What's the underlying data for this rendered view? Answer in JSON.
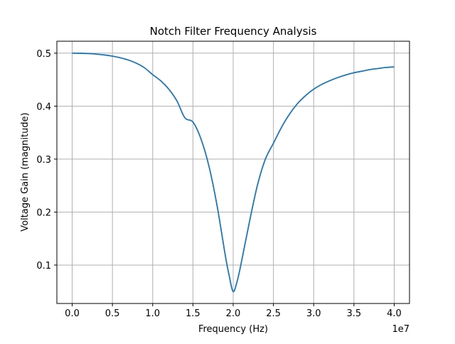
{
  "chart_data": {
    "type": "line",
    "title": "Notch Filter Frequency Analysis",
    "xlabel": "Frequency (Hz)",
    "ylabel": "Voltage Gain (magnitude)",
    "x_offset_label": "1e7",
    "xlim": [
      -1.9,
      41.9
    ],
    "ylim": [
      0.0275,
      0.5225
    ],
    "grid": true,
    "line_color": "#1f77b4",
    "grid_color": "#b0b0b0",
    "x_ticks": [
      {
        "value": 0.0,
        "label": "0.0"
      },
      {
        "value": 5.0,
        "label": "0.5"
      },
      {
        "value": 10.0,
        "label": "1.0"
      },
      {
        "value": 15.0,
        "label": "1.5"
      },
      {
        "value": 20.0,
        "label": "2.0"
      },
      {
        "value": 25.0,
        "label": "2.5"
      },
      {
        "value": 30.0,
        "label": "3.0"
      },
      {
        "value": 35.0,
        "label": "3.5"
      },
      {
        "value": 40.0,
        "label": "4.0"
      }
    ],
    "y_ticks": [
      {
        "value": 0.1,
        "label": "0.1"
      },
      {
        "value": 0.2,
        "label": "0.2"
      },
      {
        "value": 0.3,
        "label": "0.3"
      },
      {
        "value": 0.4,
        "label": "0.4"
      },
      {
        "value": 0.5,
        "label": "0.5"
      }
    ],
    "series": [
      {
        "x": [
          0,
          1,
          2,
          3,
          4,
          5,
          6,
          7,
          8,
          9,
          10,
          11,
          12,
          13,
          14,
          15,
          16,
          17,
          18,
          19,
          19.5,
          20,
          20.5,
          21,
          22,
          23,
          24,
          25,
          26,
          27,
          28,
          29,
          30,
          31,
          32,
          33,
          34,
          35,
          36,
          37,
          38,
          39,
          40
        ],
        "y": [
          0.5,
          0.4998,
          0.4992,
          0.4982,
          0.4966,
          0.4943,
          0.4912,
          0.4869,
          0.4808,
          0.4721,
          0.4594,
          0.4478,
          0.432,
          0.4102,
          0.378,
          0.37,
          0.338,
          0.286,
          0.212,
          0.12,
          0.08,
          0.05,
          0.07,
          0.104,
          0.18,
          0.25,
          0.3,
          0.33,
          0.36,
          0.385,
          0.405,
          0.42,
          0.432,
          0.441,
          0.448,
          0.454,
          0.459,
          0.463,
          0.466,
          0.469,
          0.471,
          0.473,
          0.474
        ]
      }
    ]
  }
}
